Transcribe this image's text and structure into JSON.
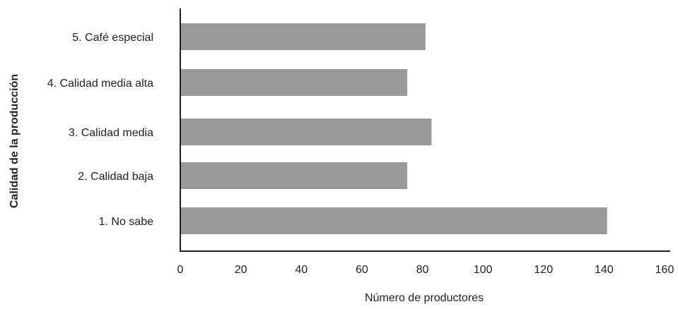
{
  "chart_data": {
    "type": "bar",
    "orientation": "horizontal",
    "categories": [
      "1. No sabe",
      "2. Calidad baja",
      "3. Calidad media",
      "4. Calidad media alta",
      "5. Café especial"
    ],
    "values": [
      141,
      75,
      83,
      75,
      81
    ],
    "xlabel": "Número de productores",
    "ylabel": "Calidad de la producción",
    "xlim": [
      0,
      160
    ],
    "xticks": [
      "0",
      "20",
      "40",
      "60",
      "80",
      "100",
      "120",
      "140",
      "160"
    ],
    "grid": false,
    "legend": "none",
    "bar_color": "#999999",
    "axis_color": "#222222",
    "text_color": "#222222"
  }
}
